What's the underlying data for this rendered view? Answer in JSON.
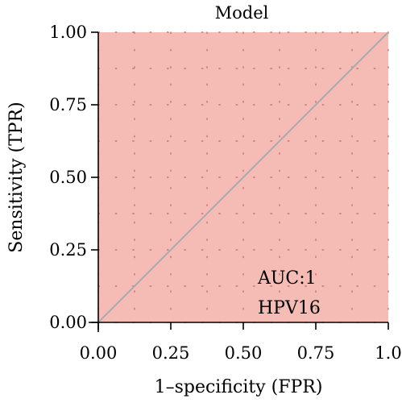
{
  "chart_data": {
    "type": "line",
    "title": "Model",
    "xlabel": "1–specificity (FPR)",
    "ylabel": "Sensitivity (TPR)",
    "xlim": [
      0,
      1
    ],
    "ylim": [
      0,
      1
    ],
    "x_ticks": [
      "0.00",
      "0.25",
      "0.50",
      "0.75",
      "1.0"
    ],
    "y_ticks": [
      "0.00",
      "0.25",
      "0.50",
      "0.75",
      "1.00"
    ],
    "grid": true,
    "series": [
      {
        "x": [
          0,
          1
        ],
        "y": [
          0,
          1
        ],
        "color": "#aaaaaa"
      }
    ],
    "annotations": [
      "AUC:1",
      "HPV16"
    ],
    "panel_color": "#f4bcb4",
    "grid_color": "#c0786c"
  }
}
